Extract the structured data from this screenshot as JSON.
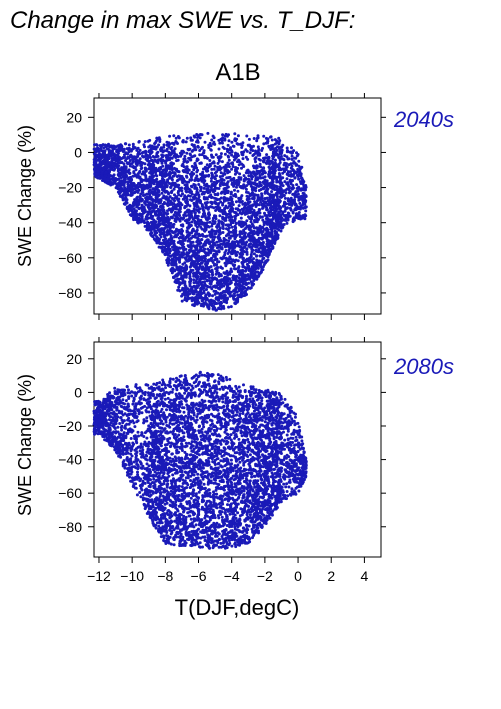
{
  "title": "Change in max SWE vs. T_DJF:",
  "scenario": "A1B",
  "xlabel": "T(DJF,degC)",
  "colors": {
    "points": "#1a1ab8",
    "axis": "#000000"
  },
  "chart_data": [
    {
      "type": "scatter",
      "panel_label": "2040s",
      "ylabel": "SWE Change (%)",
      "xlim": [
        -12.3,
        5
      ],
      "ylim": [
        -92,
        31
      ],
      "xticks": [
        -12,
        -10,
        -8,
        -6,
        -4,
        -2,
        0,
        2,
        4
      ],
      "yticks": [
        20,
        0,
        -20,
        -40,
        -60,
        -80
      ],
      "grid": false,
      "density_profile": [
        {
          "x": -12,
          "y_top": 5,
          "y_bottom": -15
        },
        {
          "x": -11,
          "y_top": 5,
          "y_bottom": -20
        },
        {
          "x": -10,
          "y_top": 5,
          "y_bottom": -38
        },
        {
          "x": -9,
          "y_top": 8,
          "y_bottom": -45
        },
        {
          "x": -8,
          "y_top": 10,
          "y_bottom": -60
        },
        {
          "x": -7,
          "y_top": 10,
          "y_bottom": -85
        },
        {
          "x": -6,
          "y_top": 12,
          "y_bottom": -88
        },
        {
          "x": -5,
          "y_top": 12,
          "y_bottom": -90
        },
        {
          "x": -4,
          "y_top": 12,
          "y_bottom": -88
        },
        {
          "x": -3,
          "y_top": 10,
          "y_bottom": -80
        },
        {
          "x": -2,
          "y_top": 10,
          "y_bottom": -65
        },
        {
          "x": -1,
          "y_top": 8,
          "y_bottom": -45
        },
        {
          "x": 0,
          "y_top": 2,
          "y_bottom": -38
        },
        {
          "x": 0.5,
          "y_top": -20,
          "y_bottom": -38
        }
      ],
      "n_points": 5200
    },
    {
      "type": "scatter",
      "panel_label": "2080s",
      "ylabel": "SWE Change (%)",
      "xlim": [
        -12.3,
        5
      ],
      "ylim": [
        -98,
        30
      ],
      "xticks": [
        -12,
        -10,
        -8,
        -6,
        -4,
        -2,
        0,
        2,
        4
      ],
      "yticks": [
        20,
        0,
        -20,
        -40,
        -60,
        -80
      ],
      "grid": false,
      "density_profile": [
        {
          "x": -12,
          "y_top": -5,
          "y_bottom": -25
        },
        {
          "x": -11,
          "y_top": 3,
          "y_bottom": -35
        },
        {
          "x": -10,
          "y_top": 5,
          "y_bottom": -55
        },
        {
          "x": -9,
          "y_top": 5,
          "y_bottom": -75
        },
        {
          "x": -8,
          "y_top": 8,
          "y_bottom": -90
        },
        {
          "x": -7,
          "y_top": 10,
          "y_bottom": -92
        },
        {
          "x": -6,
          "y_top": 12,
          "y_bottom": -93
        },
        {
          "x": -5,
          "y_top": 12,
          "y_bottom": -93
        },
        {
          "x": -4,
          "y_top": 8,
          "y_bottom": -93
        },
        {
          "x": -3,
          "y_top": 5,
          "y_bottom": -90
        },
        {
          "x": -2,
          "y_top": 2,
          "y_bottom": -80
        },
        {
          "x": -1,
          "y_top": 0,
          "y_bottom": -65
        },
        {
          "x": 0,
          "y_top": -15,
          "y_bottom": -60
        },
        {
          "x": 0.5,
          "y_top": -40,
          "y_bottom": -50
        }
      ],
      "n_points": 5200
    }
  ]
}
